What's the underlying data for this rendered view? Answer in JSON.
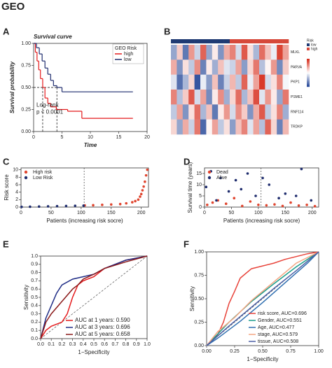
{
  "title": "GEO",
  "chart_data": [
    {
      "type": "line",
      "panel": "A",
      "step": true,
      "title": "Survival curve",
      "x_label": "Time",
      "y_label": "Survival probability",
      "xlim": [
        0,
        20
      ],
      "ylim": [
        0,
        1
      ],
      "xticks": [
        0,
        5,
        10,
        15,
        20
      ],
      "yticks": [
        {
          "value": 0,
          "label": "0.00"
        },
        0.25,
        {
          "value": 0.5,
          "label": "0.50"
        },
        0.75,
        {
          "value": 1,
          "label": "1.00"
        }
      ],
      "legend_title": "GEO Risk",
      "legend_position": "top-right",
      "annotation": [
        "Log-rank",
        "p < 0.0001"
      ],
      "medians": [
        1.6,
        4.1
      ],
      "series": [
        {
          "name": "high",
          "color": "#e41a1c",
          "x": [
            0,
            0.3,
            0.6,
            0.9,
            1.2,
            1.6,
            2,
            2.5,
            3,
            4,
            6,
            8.5,
            17.5
          ],
          "values": [
            1,
            0.9,
            0.8,
            0.7,
            0.6,
            0.5,
            0.38,
            0.32,
            0.28,
            0.25,
            0.23,
            0.15,
            0.15
          ]
        },
        {
          "name": "low",
          "color": "#1f2d6e",
          "x": [
            0,
            0.5,
            1,
            1.5,
            2,
            2.5,
            3,
            3.5,
            4.1,
            5,
            17.5
          ],
          "values": [
            1,
            0.95,
            0.88,
            0.8,
            0.72,
            0.65,
            0.58,
            0.52,
            0.5,
            0.45,
            0.45
          ]
        }
      ]
    },
    {
      "type": "heatmap",
      "panel": "B",
      "rows": [
        "MLKL",
        "PARVA",
        "PKP1",
        "PSME1",
        "RNF114",
        "TRDKP"
      ],
      "zlim": [
        -2,
        2
      ],
      "colors": [
        "#2b4c9b",
        "#ffffff",
        "#d7301f"
      ],
      "values": [
        [
          -1,
          0.5,
          -1.5,
          1,
          -0.5,
          1.5,
          -1,
          0.2,
          -1.2,
          0.8,
          1.2,
          -0.4,
          1.6,
          0.3,
          -0.8,
          1.4,
          0.6,
          -0.2,
          1.8,
          0.9
        ],
        [
          0.8,
          -1.2,
          0.3,
          -0.6,
          1.1,
          -1.4,
          0.2,
          -0.9,
          0.6,
          -0.3,
          -0.5,
          0.9,
          -1.1,
          0.4,
          1.3,
          -0.7,
          0.1,
          1,
          -1.3,
          0.5
        ],
        [
          -0.3,
          -1.6,
          -0.8,
          0.4,
          -1.9,
          -0.2,
          -1.1,
          0.6,
          -1.4,
          -0.5,
          0.7,
          -0.6,
          1.5,
          -0.2,
          0.9,
          1.9,
          -0.4,
          0.3,
          1.2,
          -0.1
        ],
        [
          1.2,
          -0.7,
          0.5,
          1.6,
          -0.4,
          0.9,
          -1.3,
          0.2,
          1.1,
          -0.9,
          0.4,
          1.4,
          -0.8,
          0.6,
          1.7,
          -0.3,
          1,
          0.2,
          -1,
          1.3
        ],
        [
          -0.6,
          0.9,
          -1.2,
          0.3,
          1.4,
          -0.8,
          0.6,
          -1.5,
          0.2,
          1,
          -0.4,
          1.1,
          0.5,
          -1.2,
          0.8,
          1.6,
          -0.6,
          0.3,
          1.2,
          -0.9
        ],
        [
          0.4,
          -1,
          0.8,
          -0.5,
          1.3,
          -1.7,
          0.1,
          0.9,
          -0.6,
          0.3,
          -1.1,
          0.6,
          1.2,
          -0.3,
          0.9,
          -0.7,
          1.5,
          0.4,
          -1.4,
          0.7
        ]
      ],
      "annotation": {
        "name": "Risk",
        "levels": [
          "low",
          "high"
        ],
        "colors": [
          "#1f3a73",
          "#d6493b"
        ],
        "values": [
          0,
          0,
          0,
          0,
          0,
          0,
          0,
          0,
          0,
          0,
          1,
          1,
          1,
          1,
          1,
          1,
          1,
          1,
          1,
          1
        ]
      }
    },
    {
      "type": "scatter",
      "panel": "C",
      "x_label": "Patients (increasing risk socre)",
      "y_label": "Risk score",
      "xlim": [
        0,
        212
      ],
      "ylim": [
        0,
        10.5
      ],
      "xticks": [
        0,
        50,
        100,
        150,
        200
      ],
      "yticks": [
        0,
        2,
        4,
        6,
        8,
        10
      ],
      "legend_position": "top-left",
      "cutoff": 105,
      "series": [
        {
          "name": "High risk",
          "color": "#e0452f",
          "x": [
            106,
            120,
            135,
            150,
            165,
            175,
            185,
            190,
            195,
            198,
            200,
            202,
            204,
            206,
            208,
            210
          ],
          "values": [
            0.45,
            0.5,
            0.6,
            0.7,
            0.8,
            1,
            1.3,
            1.6,
            2,
            2.8,
            3.5,
            4.5,
            5.5,
            6.8,
            8.5,
            10
          ]
        },
        {
          "name": "Low Risk",
          "color": "#1f2d6e",
          "x": [
            1,
            15,
            30,
            45,
            60,
            75,
            90,
            104
          ],
          "values": [
            0.05,
            0.1,
            0.15,
            0.2,
            0.25,
            0.3,
            0.35,
            0.4
          ]
        }
      ]
    },
    {
      "type": "scatter",
      "panel": "D",
      "x_label": "Patients (increasing risk socre)",
      "y_label": "Survival time (years)",
      "xlim": [
        0,
        212
      ],
      "ylim": [
        0,
        17.5
      ],
      "xticks": [
        0,
        50,
        100,
        150,
        200
      ],
      "yticks": [
        0,
        5,
        10,
        15
      ],
      "legend_position": "top-left",
      "cutoff": 105,
      "series": [
        {
          "name": "Dead",
          "color": "#e0452f",
          "x": [
            5,
            15,
            25,
            40,
            55,
            70,
            85,
            100,
            115,
            130,
            145,
            160,
            175,
            190,
            205
          ],
          "values": [
            1,
            2,
            3,
            1.5,
            4,
            0.5,
            2.5,
            1,
            0.8,
            1.2,
            0.5,
            2,
            0.7,
            1,
            0.4
          ]
        },
        {
          "name": "Alive",
          "color": "#1f2d6e",
          "x": [
            3,
            12,
            22,
            30,
            45,
            58,
            68,
            80,
            95,
            108,
            120,
            138,
            150,
            170,
            180,
            198
          ],
          "values": [
            9,
            16,
            3,
            13,
            7,
            12,
            8,
            15,
            5,
            13,
            10,
            4,
            6,
            5,
            17,
            3
          ]
        }
      ]
    },
    {
      "type": "line",
      "panel": "E",
      "x_label": "1−Specificity",
      "y_label": "Sensitivity",
      "xlim": [
        0,
        1
      ],
      "ylim": [
        0,
        1
      ],
      "xticks": [
        {
          "value": 0,
          "label": "0.0"
        },
        0.1,
        0.2,
        0.3,
        0.4,
        0.5,
        0.6,
        0.7,
        0.8,
        0.9,
        {
          "value": 1,
          "label": "1.0"
        }
      ],
      "yticks": [
        {
          "value": 0,
          "label": "0.0"
        },
        0.1,
        0.2,
        0.3,
        0.4,
        0.5,
        0.6,
        0.7,
        0.8,
        0.9,
        {
          "value": 1,
          "label": "1.0"
        }
      ],
      "legend_position": "bottom-right",
      "series": [
        {
          "name": "AUC at 1 years: 0.590",
          "color": "#e41a1c",
          "x": [
            0,
            0.05,
            0.1,
            0.2,
            0.25,
            0.3,
            0.35,
            0.4,
            0.5,
            0.6,
            0.7,
            0.8,
            1
          ],
          "values": [
            0,
            0.1,
            0.15,
            0.2,
            0.3,
            0.5,
            0.65,
            0.7,
            0.75,
            0.85,
            0.9,
            0.95,
            1
          ]
        },
        {
          "name": "AUC at 3 years: 0.696",
          "color": "#1f2d86",
          "x": [
            0,
            0.05,
            0.1,
            0.15,
            0.2,
            0.3,
            0.4,
            0.5,
            0.6,
            0.8,
            1
          ],
          "values": [
            0,
            0.25,
            0.4,
            0.55,
            0.65,
            0.72,
            0.75,
            0.78,
            0.85,
            0.95,
            1
          ]
        },
        {
          "name": "AUC at 5 years: 0.658",
          "color": "#8b1a1a",
          "x": [
            0,
            0.05,
            0.1,
            0.2,
            0.3,
            0.35,
            0.4,
            0.5,
            0.6,
            0.8,
            1
          ],
          "values": [
            0,
            0.2,
            0.3,
            0.45,
            0.6,
            0.65,
            0.72,
            0.78,
            0.85,
            0.93,
            1
          ]
        }
      ]
    },
    {
      "type": "line",
      "panel": "F",
      "x_label": "1−Specificity",
      "y_label": "Sensitivity",
      "xlim": [
        0,
        1
      ],
      "ylim": [
        0,
        1
      ],
      "xticks": [
        {
          "value": 0,
          "label": "0.00"
        },
        0.25,
        {
          "value": 0.5,
          "label": "0.50"
        },
        0.75,
        {
          "value": 1,
          "label": "1.00"
        }
      ],
      "yticks": [
        {
          "value": 0,
          "label": "0.00"
        },
        0.25,
        {
          "value": 0.5,
          "label": "0.50"
        },
        0.75,
        {
          "value": 1,
          "label": "1.00"
        }
      ],
      "legend_position": "bottom-right",
      "series": [
        {
          "name": "risk score, AUC=0.696",
          "color": "#e8433a",
          "x": [
            0,
            0.05,
            0.1,
            0.15,
            0.2,
            0.25,
            0.3,
            0.4,
            0.5,
            0.6,
            0.7,
            0.8,
            0.9,
            1
          ],
          "values": [
            0,
            0.05,
            0.12,
            0.25,
            0.45,
            0.58,
            0.72,
            0.82,
            0.85,
            0.88,
            0.92,
            0.95,
            0.98,
            1
          ]
        },
        {
          "name": "Gender, AUC=0.551",
          "color": "#1b9e8a",
          "x": [
            0,
            0.2,
            0.4,
            0.6,
            0.8,
            1
          ],
          "values": [
            0,
            0.25,
            0.47,
            0.66,
            0.84,
            1
          ]
        },
        {
          "name": "Age, AUC=0.477",
          "color": "#2f6fb0",
          "x": [
            0,
            0.1,
            0.3,
            0.5,
            0.7,
            0.9,
            1
          ],
          "values": [
            0,
            0.08,
            0.26,
            0.46,
            0.67,
            0.88,
            1
          ]
        },
        {
          "name": "stage, AUC=0.579",
          "color": "#f4a582",
          "x": [
            0,
            0.1,
            0.25,
            0.4,
            0.6,
            0.8,
            1
          ],
          "values": [
            0,
            0.15,
            0.3,
            0.48,
            0.68,
            0.88,
            1
          ]
        },
        {
          "name": "tissue, AUC=0.508",
          "color": "#4a5fa5",
          "x": [
            0,
            0.2,
            0.4,
            0.6,
            0.8,
            1
          ],
          "values": [
            0,
            0.21,
            0.41,
            0.61,
            0.8,
            1
          ]
        }
      ]
    }
  ]
}
